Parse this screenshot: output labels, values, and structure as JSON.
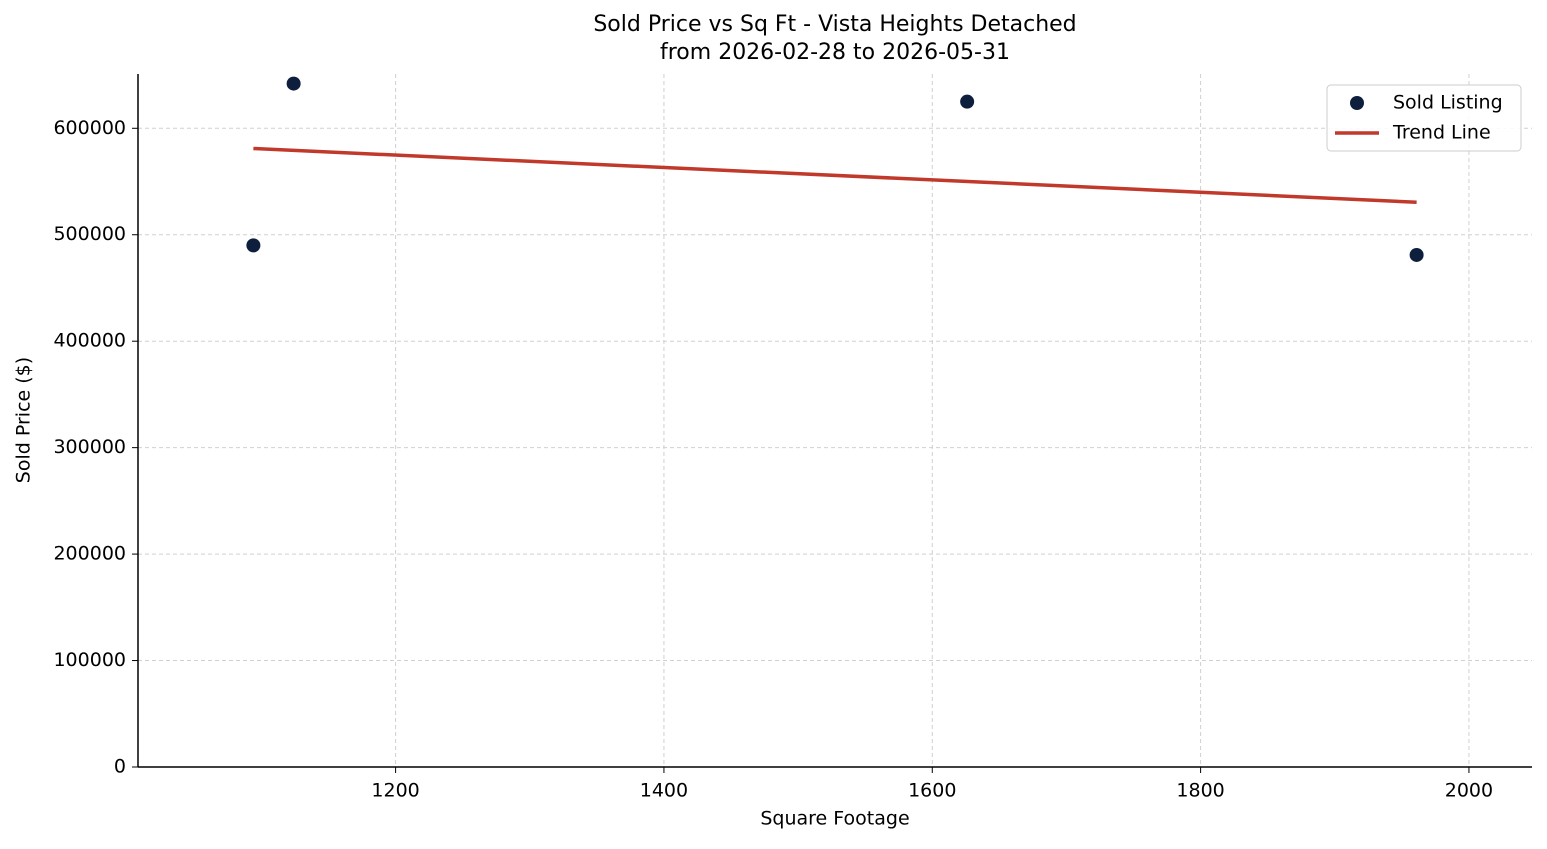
{
  "chart_data": {
    "type": "scatter",
    "title": "Sold Price vs Sq Ft - Vista Heights Detached",
    "subtitle": "from 2026-02-28 to 2026-05-31",
    "x_label": "Square Footage",
    "y_label": "Sold Price ($)",
    "xlim": [
      1008,
      2047
    ],
    "ylim": [
      0,
      651000
    ],
    "xticks": [
      1200,
      1400,
      1600,
      1800,
      2000
    ],
    "yticks": [
      0,
      100000,
      200000,
      300000,
      400000,
      500000,
      600000
    ],
    "grid": true,
    "legend": "upper right",
    "series": [
      {
        "name": "Sold Listing",
        "mode": "markers",
        "color": "#0d1f3c",
        "x": [
          1094,
          1124,
          1626,
          1961
        ],
        "values": [
          490000,
          642000,
          625000,
          481000
        ]
      },
      {
        "name": "Trend Line",
        "mode": "line",
        "color": "#c0392b",
        "x": [
          1094,
          1961
        ],
        "values": [
          581000,
          530500
        ]
      }
    ]
  }
}
